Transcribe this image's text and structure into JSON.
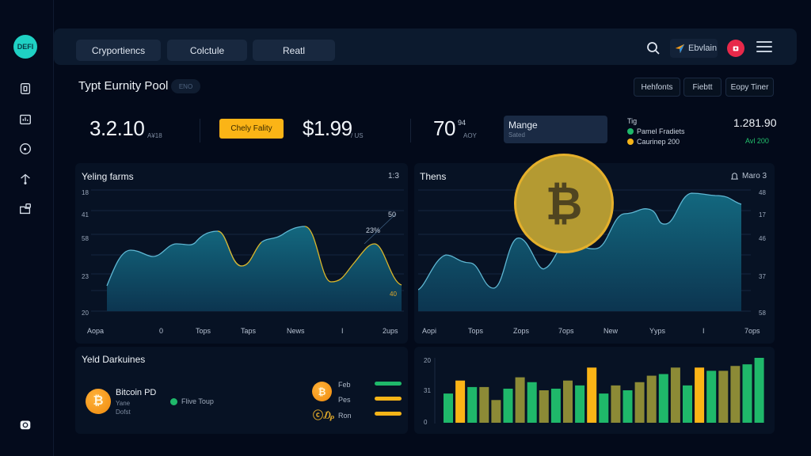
{
  "sidebar": {
    "logo": "DEFI",
    "items": [
      {
        "name": "wallet-icon"
      },
      {
        "name": "analytics-icon"
      },
      {
        "name": "compass-icon"
      },
      {
        "name": "antenna-icon"
      },
      {
        "name": "folder-icon"
      }
    ],
    "bottom_icon": "camera-icon"
  },
  "topbar": {
    "tabs": [
      "Cryportiencs",
      "Colctule",
      "Reatl"
    ],
    "brand_label": "Ebvlain",
    "icons": [
      "search-icon",
      "brand-arrow-icon",
      "alert-icon",
      "menu-icon"
    ]
  },
  "pool": {
    "title": "Typt Eurnity Pool",
    "badge": "ENO",
    "filters": [
      "Hehfonts",
      "Fiebtt",
      "Eopy Tiner"
    ]
  },
  "stats": {
    "stat1_value": "3.2.10",
    "stat1_unit": "A¥18",
    "action_label": "Chely Fality",
    "stat2_value": "$1.99",
    "stat2_unit": "/ US",
    "stat3_value": "70",
    "stat3_sup": "94",
    "stat3_unit": "AOY",
    "manage_title": "Mange",
    "manage_sub": "Sated",
    "legend_title": "Tig",
    "legend": [
      {
        "label": "Pamel Fradiets",
        "color": "#1fb86a"
      },
      {
        "label": "Caurinep 200",
        "color": "#f5b418"
      }
    ],
    "total_value": "1.281.90",
    "total_sub": "Avl 200",
    "total_sub_color": "#22c06c"
  },
  "colors": {
    "accent_yellow": "#fbb416",
    "accent_green": "#1fb86a",
    "area_fill": "#11627a",
    "area_line": "#56b6d6",
    "olive": "#8c8a36",
    "alert_red": "#e8294a",
    "teal_logo": "#1fd1c4"
  },
  "chart_data": [
    {
      "type": "area",
      "title": "Yeling farms",
      "meta": "1:3",
      "y_ticks": [
        "18",
        "41",
        "58",
        "23",
        "20"
      ],
      "x_labels": [
        "Aopa",
        "0",
        "Tops",
        "Taps",
        "News",
        "I",
        "2ups"
      ],
      "annotations": [
        "50",
        "23%",
        "40"
      ],
      "x": [
        0,
        1,
        2,
        3,
        4,
        5,
        6,
        7,
        8,
        9,
        10,
        11,
        12,
        13,
        14,
        15,
        16,
        17,
        18,
        19,
        20
      ],
      "values": [
        30,
        52,
        48,
        55,
        53,
        64,
        40,
        57,
        62,
        68,
        47,
        33,
        45,
        58,
        34,
        20,
        18,
        28,
        45,
        58,
        25
      ]
    },
    {
      "type": "area",
      "title": "Thens",
      "meta": "Maro 3",
      "y_ticks": [
        "48",
        "17",
        "46",
        "37",
        "58"
      ],
      "x_labels": [
        "Aopi",
        "Tops",
        "Zops",
        "7ops",
        "New",
        "Yyps",
        "I",
        "7ops"
      ],
      "x": [
        0,
        1,
        2,
        3,
        4,
        5,
        6,
        7,
        8,
        9,
        10,
        11,
        12,
        13,
        14
      ],
      "values": [
        20,
        45,
        40,
        22,
        55,
        35,
        52,
        51,
        72,
        75,
        65,
        88,
        87,
        85,
        80
      ]
    },
    {
      "type": "bar",
      "y_ticks": [
        "20",
        "31",
        "0"
      ],
      "values": [
        9,
        13,
        11,
        11,
        7,
        10.5,
        14,
        12.5,
        10,
        10.5,
        13,
        11.5,
        17,
        9,
        11.5,
        10,
        12.5,
        14.5,
        15,
        17,
        11.5,
        17,
        16,
        16,
        17.5,
        18,
        20
      ],
      "colors": [
        "green",
        "yellow",
        "green",
        "olive",
        "olive",
        "green",
        "olive",
        "green",
        "olive",
        "green",
        "olive",
        "green",
        "yellow",
        "green",
        "olive",
        "green",
        "olive",
        "olive",
        "green",
        "olive",
        "green",
        "yellow",
        "green",
        "olive",
        "olive",
        "green",
        "green"
      ]
    }
  ],
  "yield": {
    "title": "Yeld Darkuines",
    "item_name": "Bitcoin PD",
    "item_sub1": "Yane",
    "item_sub2": "Dofst",
    "status_label": "Flive Toup",
    "status_color": "#1fb86a",
    "rows": [
      {
        "label": "Feb",
        "color": "#1fb86a"
      },
      {
        "label": "Pes",
        "color": "#f5b418"
      },
      {
        "label": "Ron",
        "color": "#f5b418"
      }
    ]
  }
}
